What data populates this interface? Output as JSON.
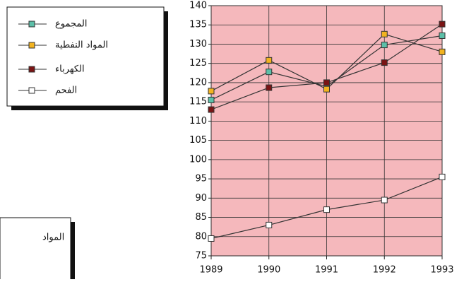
{
  "chart_data": {
    "type": "line",
    "x": [
      1989,
      1990,
      1991,
      1992,
      1993
    ],
    "xlim": [
      1989,
      1993
    ],
    "xticks": [
      1989,
      1990,
      1991,
      1992,
      1993
    ],
    "ylim": [
      75,
      140
    ],
    "yticks": [
      75,
      80,
      85,
      90,
      95,
      100,
      105,
      110,
      115,
      120,
      125,
      130,
      135,
      140
    ],
    "grid": true,
    "background": "#f5b8bc",
    "legend": "upper-left",
    "series": [
      {
        "name": "المجموع",
        "color": "#5cbfa8",
        "values": [
          115.5,
          122.8,
          119,
          129.8,
          132.2
        ]
      },
      {
        "name": "المواد النفطية",
        "color": "#f2b320",
        "values": [
          117.8,
          125.8,
          118.3,
          132.6,
          128
        ]
      },
      {
        "name": "الكهرباء",
        "color": "#7a1414",
        "values": [
          113,
          118.7,
          120,
          125.2,
          135.2
        ]
      },
      {
        "name": "الفحم",
        "color": "#ffffff",
        "values": [
          79.5,
          83,
          87,
          89.5,
          95.5
        ]
      }
    ],
    "annotations": [
      "المواد"
    ]
  }
}
